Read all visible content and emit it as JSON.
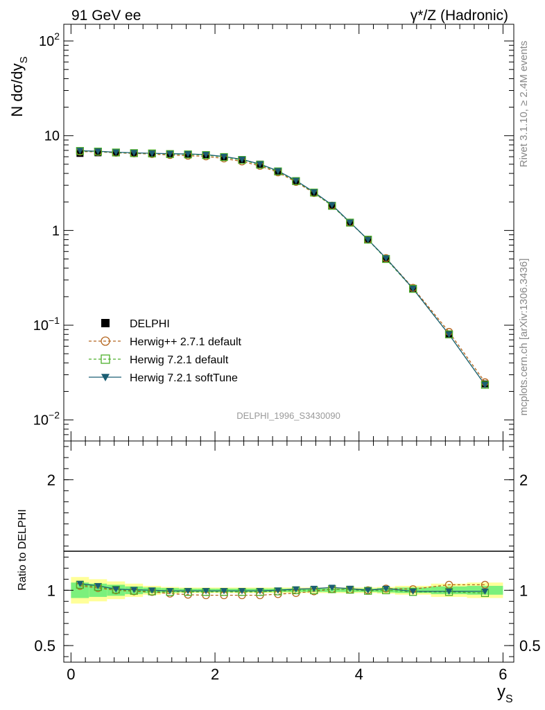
{
  "header": {
    "left": "91 GeV ee",
    "right": "γ*/Z (Hadronic)"
  },
  "side": {
    "rivet": "Rivet 3.1.10, ≥ 2.4M events",
    "mcplots": "mcplots.cern.ch [arXiv:1306.3436]"
  },
  "watermark": "DELPHI_1996_S3430090",
  "colors": {
    "data": "#000000",
    "herwigpp": "#b5651d",
    "herwig721": "#4caf2a",
    "softtune": "#1b5e73",
    "band_outer": "#ffff99",
    "band_inner": "#7cf07c"
  },
  "chart_data": [
    {
      "type": "scatter",
      "ylabel_main": "N dσ/dy",
      "ylabel_sub": "S",
      "xlabel_main": "y",
      "xlabel_sub": "S",
      "yscale": "log",
      "xlim": [
        -0.1,
        6.15
      ],
      "ylim": [
        0.006,
        150
      ],
      "y_ticks": [
        {
          "v": 100,
          "base": "10",
          "exp": "2"
        },
        {
          "v": 10,
          "base": "10",
          "exp": ""
        },
        {
          "v": 1,
          "base": "1",
          "exp": ""
        },
        {
          "v": 0.1,
          "base": "10",
          "exp": "−1"
        },
        {
          "v": 0.01,
          "base": "10",
          "exp": "−2"
        }
      ],
      "legend_position": "lower-left",
      "x": [
        0.125,
        0.375,
        0.625,
        0.875,
        1.125,
        1.375,
        1.625,
        1.875,
        2.125,
        2.375,
        2.625,
        2.875,
        3.125,
        3.375,
        3.625,
        3.875,
        4.125,
        4.375,
        4.75,
        5.25,
        5.75
      ],
      "series": [
        {
          "name": "DELPHI",
          "key": "data",
          "marker": "square-filled",
          "values": [
            6.5,
            6.6,
            6.6,
            6.55,
            6.5,
            6.45,
            6.4,
            6.3,
            6.0,
            5.6,
            5.0,
            4.2,
            3.3,
            2.5,
            1.8,
            1.2,
            0.8,
            0.5,
            0.245,
            0.081,
            0.024
          ]
        },
        {
          "name": "Herwig++ 2.7.1 default",
          "key": "herwigpp",
          "marker": "circle-open",
          "dashed": true,
          "values": [
            6.8,
            6.75,
            6.6,
            6.5,
            6.4,
            6.25,
            6.15,
            6.05,
            5.75,
            5.35,
            4.8,
            4.1,
            3.25,
            2.48,
            1.83,
            1.21,
            0.8,
            0.51,
            0.248,
            0.085,
            0.025
          ]
        },
        {
          "name": "Herwig 7.2.1 default",
          "key": "herwig721",
          "marker": "square-open",
          "dashed": true,
          "values": [
            6.9,
            6.8,
            6.65,
            6.55,
            6.5,
            6.4,
            6.35,
            6.25,
            5.95,
            5.55,
            4.95,
            4.2,
            3.32,
            2.51,
            1.82,
            1.21,
            0.8,
            0.5,
            0.242,
            0.08,
            0.0235
          ]
        },
        {
          "name": "Herwig 7.2.1 softTune",
          "key": "softtune",
          "marker": "triangle-down-filled",
          "dashed": false,
          "values": [
            6.95,
            6.85,
            6.7,
            6.6,
            6.52,
            6.45,
            6.42,
            6.32,
            6.02,
            5.62,
            5.02,
            4.25,
            3.36,
            2.54,
            1.86,
            1.22,
            0.8,
            0.51,
            0.243,
            0.08,
            0.0235
          ]
        }
      ]
    },
    {
      "type": "scatter",
      "ylabel": "Ratio to DELPHI",
      "xlabel_main": "y",
      "xlabel_sub": "S",
      "xlim": [
        -0.1,
        6.15
      ],
      "ylim": [
        0.35,
        2.35
      ],
      "y_ticks": [
        {
          "v": 0.5,
          "label": "0.5"
        },
        {
          "v": 1,
          "label": "1"
        },
        {
          "v": 2,
          "label": "2"
        }
      ],
      "x_ticks": [
        {
          "v": 0,
          "label": "0"
        },
        {
          "v": 2,
          "label": "2"
        },
        {
          "v": 4,
          "label": "4"
        },
        {
          "v": 6,
          "label": "6"
        }
      ],
      "bin_edges": [
        0.0,
        0.25,
        0.5,
        0.75,
        1.0,
        1.25,
        1.5,
        1.75,
        2.0,
        2.25,
        2.5,
        2.75,
        3.0,
        3.25,
        3.5,
        3.75,
        4.0,
        4.25,
        4.5,
        5.0,
        5.5,
        6.0
      ],
      "band_outer": [
        0.12,
        0.1,
        0.08,
        0.06,
        0.04,
        0.03,
        0.025,
        0.025,
        0.025,
        0.025,
        0.025,
        0.025,
        0.025,
        0.025,
        0.025,
        0.025,
        0.025,
        0.03,
        0.04,
        0.06,
        0.07
      ],
      "band_inner": [
        0.07,
        0.06,
        0.05,
        0.035,
        0.025,
        0.02,
        0.015,
        0.015,
        0.015,
        0.015,
        0.015,
        0.015,
        0.015,
        0.015,
        0.015,
        0.015,
        0.015,
        0.02,
        0.025,
        0.035,
        0.04
      ],
      "series": [
        {
          "key": "herwigpp",
          "values": [
            1.04,
            1.02,
            1.0,
            0.99,
            0.985,
            0.97,
            0.96,
            0.955,
            0.955,
            0.955,
            0.955,
            0.965,
            0.975,
            0.99,
            1.01,
            1.005,
            1.0,
            1.015,
            1.01,
            1.05,
            1.05
          ]
        },
        {
          "key": "herwig721",
          "values": [
            1.05,
            1.03,
            1.005,
            0.995,
            0.99,
            0.985,
            0.985,
            0.985,
            0.985,
            0.985,
            0.985,
            0.99,
            1.0,
            1.0,
            1.01,
            1.005,
            0.995,
            1.0,
            0.985,
            0.985,
            0.975
          ]
        },
        {
          "key": "softtune",
          "values": [
            1.06,
            1.04,
            1.01,
            1.005,
            1.0,
            0.995,
            0.995,
            0.995,
            0.995,
            0.995,
            0.995,
            1.0,
            1.01,
            1.015,
            1.025,
            1.015,
            1.0,
            1.015,
            0.99,
            0.99,
            0.99
          ]
        }
      ]
    }
  ]
}
